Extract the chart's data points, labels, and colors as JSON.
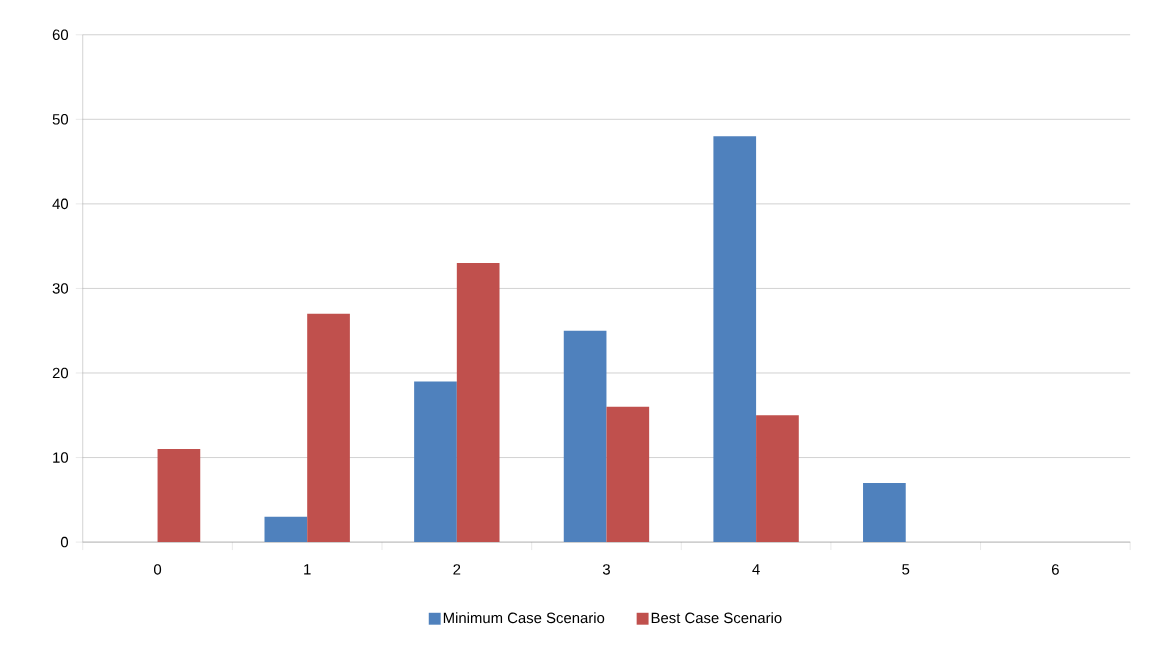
{
  "chart_data": {
    "type": "bar",
    "categories": [
      "0",
      "1",
      "2",
      "3",
      "4",
      "5",
      "6"
    ],
    "series": [
      {
        "name": "Minimum Case Scenario",
        "color": "#4f81bd",
        "values": [
          0,
          3,
          19,
          25,
          48,
          7,
          0
        ]
      },
      {
        "name": "Best Case Scenario",
        "color": "#c0504d",
        "values": [
          11,
          27,
          33,
          16,
          15,
          0,
          0
        ]
      }
    ],
    "ylim": [
      0,
      60
    ],
    "yticks": [
      0,
      10,
      20,
      30,
      40,
      50,
      60
    ],
    "grid": "y",
    "legend": "bottom"
  }
}
